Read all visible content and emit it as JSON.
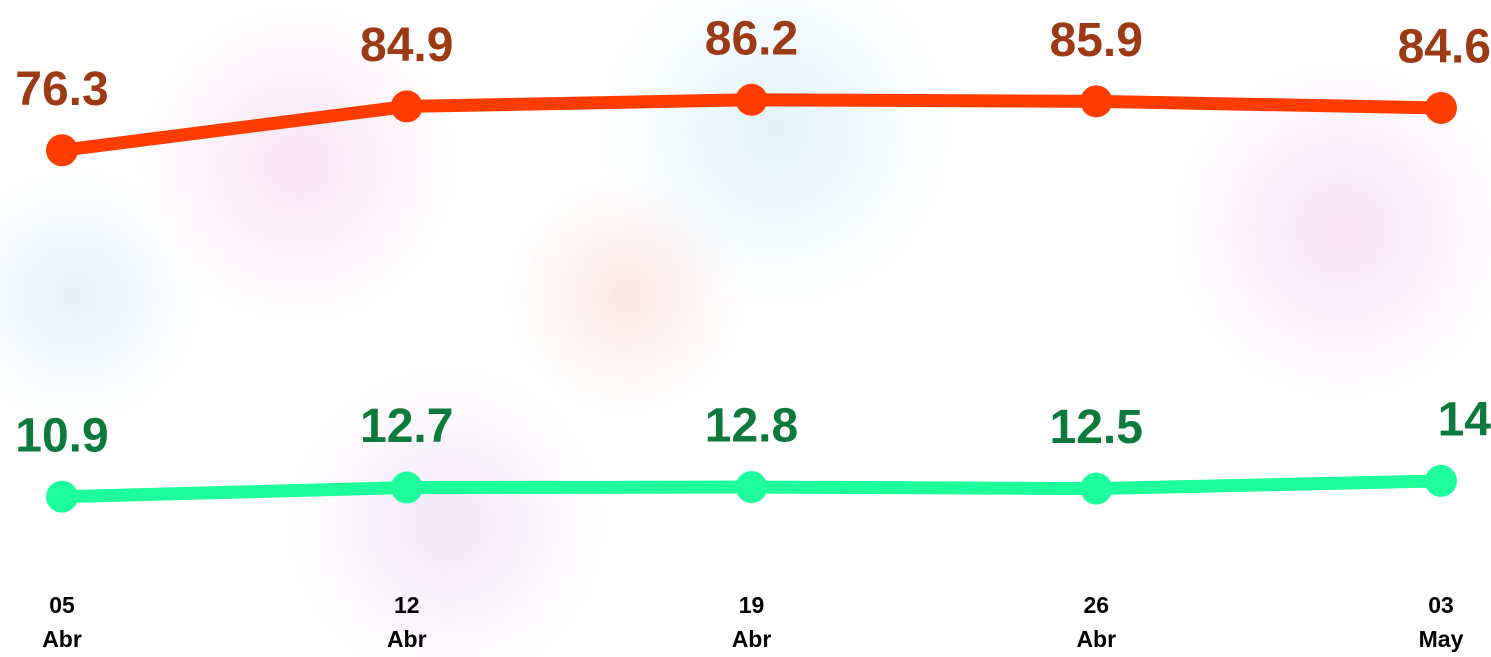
{
  "chart_data": {
    "type": "line",
    "categories": [
      "05 Abr",
      "12 Abr",
      "19 Abr",
      "26 Abr",
      "03 May"
    ],
    "series": [
      {
        "name": null,
        "color": "#ff3c00",
        "label_color": "#9b3a14",
        "values": [
          76.3,
          84.9,
          86.2,
          85.9,
          84.6
        ]
      },
      {
        "name": null,
        "color": "#1dff9a",
        "label_color": "#0b7a3c",
        "axis": "y2",
        "values": [
          10.9,
          12.7,
          12.8,
          12.5,
          14.0
        ]
      }
    ],
    "ylim": [
      -4,
      94
    ],
    "y2lim": [
      -1.5,
      96.5
    ],
    "grid": false,
    "legend": false
  }
}
